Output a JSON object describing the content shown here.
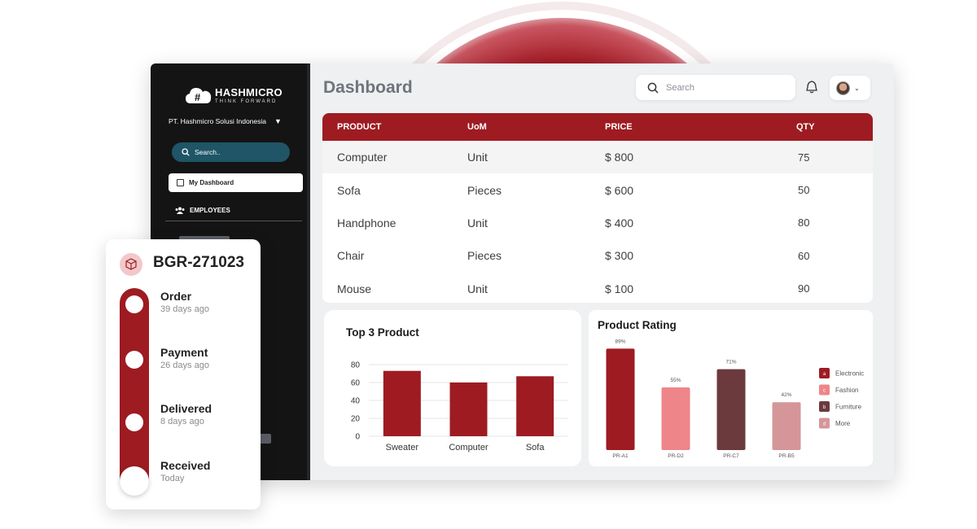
{
  "brand": {
    "name": "HASHMICRO",
    "tagline": "THINK FORWARD"
  },
  "sidebar": {
    "company": "PT. Hashmicro Solusi Indonesia",
    "search_placeholder": "Search..",
    "items": [
      {
        "label": "My Dashboard",
        "icon": "dashboard-icon",
        "active": true
      },
      {
        "label": "EMPLOYEES",
        "icon": "people-icon",
        "active": false
      }
    ]
  },
  "header": {
    "title": "Dashboard",
    "search_placeholder": "Search"
  },
  "table": {
    "columns": [
      "PRODUCT",
      "UoM",
      "PRICE",
      "QTY"
    ],
    "rows": [
      [
        "Computer",
        "Unit",
        "$ 800",
        "75"
      ],
      [
        "Sofa",
        "Pieces",
        "$ 600",
        "50"
      ],
      [
        "Handphone",
        "Unit",
        "$ 400",
        "80"
      ],
      [
        "Chair",
        "Pieces",
        "$ 300",
        "60"
      ],
      [
        "Mouse",
        "Unit",
        "$ 100",
        "90"
      ]
    ]
  },
  "chart_data": [
    {
      "type": "bar",
      "title": "Top 3 Product",
      "categories": [
        "Sweater",
        "Computer",
        "Sofa"
      ],
      "values": [
        73,
        60,
        67
      ],
      "yticks": [
        "0",
        "20",
        "40",
        "60",
        "80"
      ],
      "ylim": [
        0,
        80
      ],
      "grid": true,
      "color": "#9e1b22"
    },
    {
      "type": "bar",
      "title": "Product Rating",
      "categories": [
        "PR-A1",
        "PR-D2",
        "PR-C7",
        "PR-B5"
      ],
      "values": [
        89,
        55,
        71,
        42
      ],
      "data_labels": [
        "89%",
        "55%",
        "71%",
        "42%"
      ],
      "ylim": [
        0,
        100
      ],
      "colors": [
        "#9e1b22",
        "#ee8589",
        "#6b3a3d",
        "#d59699"
      ],
      "legend": {
        "placement": "right",
        "entries": [
          {
            "key": "a",
            "label": "Electronic",
            "color": "#9e1b22"
          },
          {
            "key": "c",
            "label": "Fashion",
            "color": "#ee8589"
          },
          {
            "key": "b",
            "label": "Furniture",
            "color": "#6b3a3d"
          },
          {
            "key": "d",
            "label": "More",
            "color": "#d59699"
          }
        ]
      }
    }
  ],
  "tracker": {
    "code": "BGR-271023",
    "steps": [
      {
        "title": "Order",
        "sub": "39 days ago"
      },
      {
        "title": "Payment",
        "sub": "26 days ago"
      },
      {
        "title": "Delivered",
        "sub": "8 days ago"
      },
      {
        "title": "Received",
        "sub": "Today"
      }
    ]
  }
}
